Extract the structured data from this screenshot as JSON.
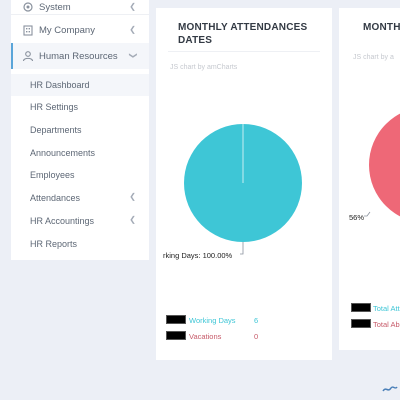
{
  "sidebar": {
    "items": [
      {
        "label": "System",
        "icon": "gear-icon"
      },
      {
        "label": "My Company",
        "icon": "building-icon"
      },
      {
        "label": "Human Resources",
        "icon": "users-icon"
      }
    ],
    "sub_items": [
      {
        "label": "HR Dashboard"
      },
      {
        "label": "HR Settings"
      },
      {
        "label": "Departments"
      },
      {
        "label": "Announcements"
      },
      {
        "label": "Employees"
      },
      {
        "label": "Attendances"
      },
      {
        "label": "HR Accountings"
      },
      {
        "label": "HR Reports"
      }
    ]
  },
  "card1": {
    "title_line1": "MONTHLY ATTENDANCES",
    "title_line2": "DATES",
    "credit": "JS chart by amCharts",
    "pie_label": "rking Days: 100.00%",
    "chart_data": {
      "type": "pie",
      "slices": [
        {
          "name": "Working Days",
          "value": 6,
          "color": "#3ec6d6"
        },
        {
          "name": "Vacations",
          "value": 0,
          "color": "#c75b6a"
        }
      ]
    },
    "legend": [
      {
        "label": "Working Days",
        "value": "6",
        "color": "#3ec6d6"
      },
      {
        "label": "Vacations",
        "value": "0",
        "color": "#c75b6a"
      }
    ]
  },
  "card2": {
    "title": "MONTH",
    "credit": "JS chart by a",
    "pie_label": "56%",
    "slice_color": "#ee6877",
    "legend": [
      {
        "label": "Total Att",
        "color": "#3ec6d6"
      },
      {
        "label": "Total Ab",
        "color": "#c75b6a"
      }
    ]
  }
}
